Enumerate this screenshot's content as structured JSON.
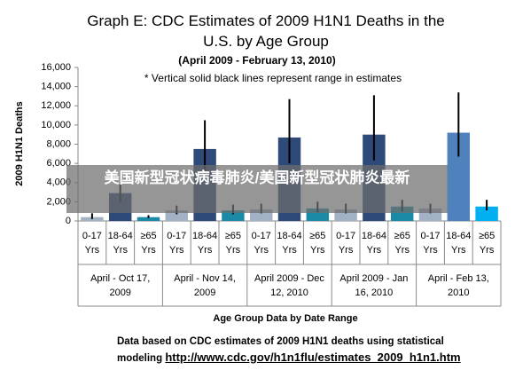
{
  "chart_data": {
    "type": "bar",
    "title": "Graph E: CDC Estimates of 2009 H1N1 Deaths in the U.S. by Age Group",
    "subtitle": "(April 2009 - February 13, 2010)",
    "annotation": "* Vertical solid black lines represent range in estimates",
    "y_label": "2009 H1N1 Deaths",
    "x_label": "Age Group Data by Date Range",
    "categories": [
      "April - Oct 17, 2009",
      "April - Nov 14, 2009",
      "April 2009 - Dec 12, 2010",
      "April 2009 - Jan 16, 2010",
      "April - Feb 13, 2010"
    ],
    "series": [
      {
        "name": "0-17 Yrs",
        "colors": [
          "#a3b1c4",
          "#a3b1c4",
          "#a3b1c4",
          "#a3b1c4",
          "#a3b1c4"
        ],
        "values": [
          400,
          1100,
          1200,
          1200,
          1300
        ],
        "low": [
          200,
          700,
          800,
          800,
          800
        ],
        "high": [
          800,
          1600,
          1800,
          1800,
          1800
        ]
      },
      {
        "name": "18-64 Yrs",
        "colors": [
          "#2e4a78",
          "#2e4a78",
          "#2e4a78",
          "#2e4a78",
          "#4f81bd"
        ],
        "values": [
          2900,
          7500,
          8700,
          9000,
          9200
        ],
        "low": [
          2000,
          4800,
          6000,
          6300,
          6700
        ],
        "high": [
          3800,
          10500,
          12700,
          13100,
          13400
        ]
      },
      {
        "name": "≥65 Yrs",
        "colors": [
          "#1b8aa6",
          "#1b8aa6",
          "#1b8aa6",
          "#1b8aa6",
          "#00b0f0"
        ],
        "values": [
          400,
          1100,
          1300,
          1500,
          1500
        ],
        "low": [
          300,
          700,
          900,
          1000,
          1100
        ],
        "high": [
          600,
          1700,
          2000,
          2200,
          2200
        ]
      }
    ],
    "ylim": [
      0,
      16000
    ],
    "yticks": [
      0,
      {
        "value": 2000,
        "label": "2,000"
      },
      {
        "value": 4000,
        "label": "4,000"
      },
      {
        "value": 6000,
        "label": "6,000"
      },
      {
        "value": 8000,
        "label": "8,000"
      },
      {
        "value": 10000,
        "label": "10,000"
      },
      {
        "value": 12000,
        "label": "12,000"
      },
      {
        "value": 14000,
        "label": "14,000"
      },
      {
        "value": 16000,
        "label": "16,000"
      }
    ],
    "grid": false,
    "source_text": "Data based on CDC estimates of 2009 H1N1 deaths using statistical modeling",
    "source_url": "http://www.cdc.gov/h1n1flu/estimates_2009_h1n1.htm",
    "overlay_text": "美国新型冠状病毒肺炎/美国新型冠状肺炎最新"
  }
}
